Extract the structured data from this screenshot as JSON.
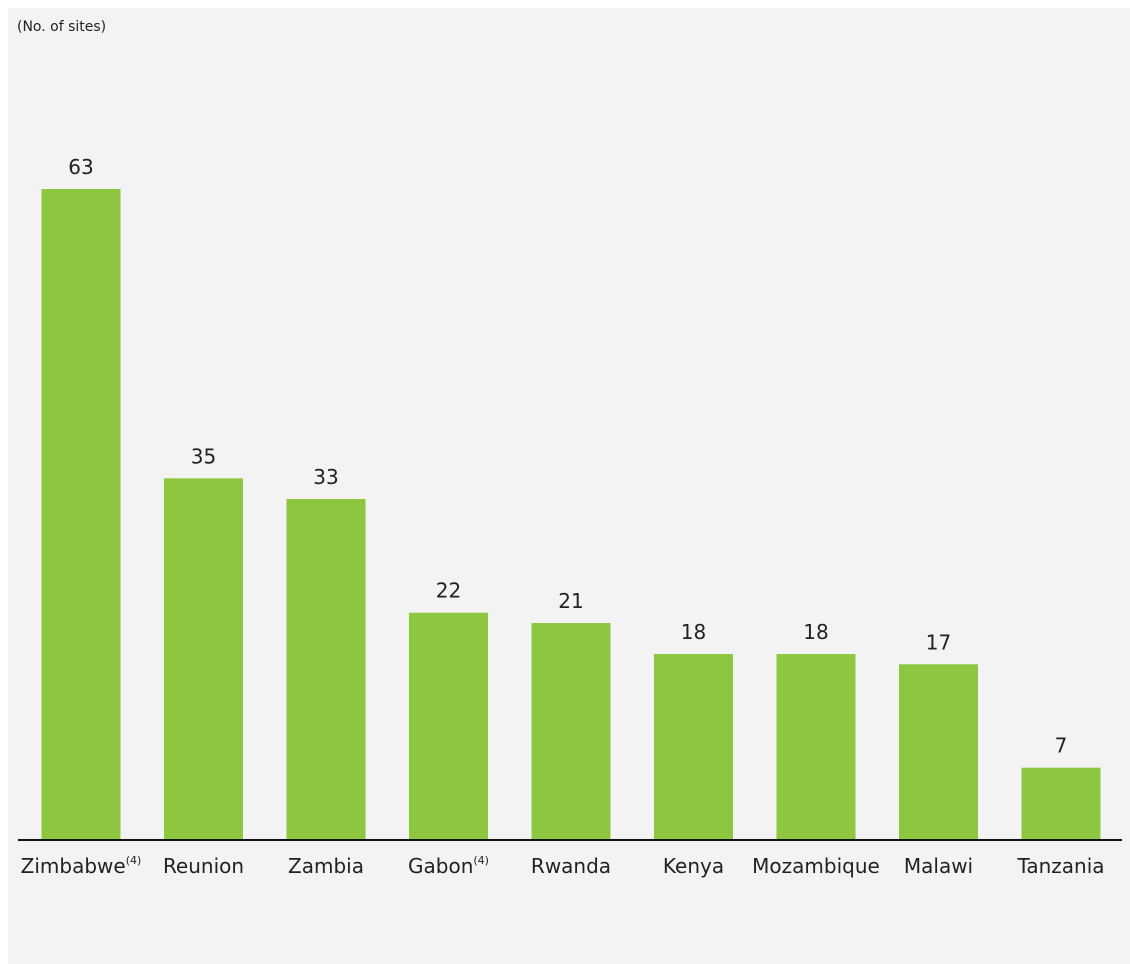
{
  "chart_data": {
    "type": "bar",
    "unit_label": "(No. of sites)",
    "categories": [
      "Zimbabwe",
      "Reunion",
      "Zambia",
      "Gabon",
      "Rwanda",
      "Kenya",
      "Mozambique",
      "Malawi",
      "Tanzania"
    ],
    "category_footnotes": [
      "(4)",
      "",
      "",
      "(4)",
      "",
      "",
      "",
      "",
      ""
    ],
    "values": [
      63,
      35,
      33,
      22,
      21,
      18,
      18,
      17,
      7
    ],
    "data_labels": [
      "63",
      "35",
      "33",
      "22",
      "21",
      "18",
      "18",
      "17",
      "7"
    ],
    "ylim": [
      0,
      63
    ],
    "grid": false,
    "colors": {
      "bar": "#8dc63f",
      "axis": "#111111",
      "background": "#f2f3f2",
      "text": "#222222"
    }
  }
}
